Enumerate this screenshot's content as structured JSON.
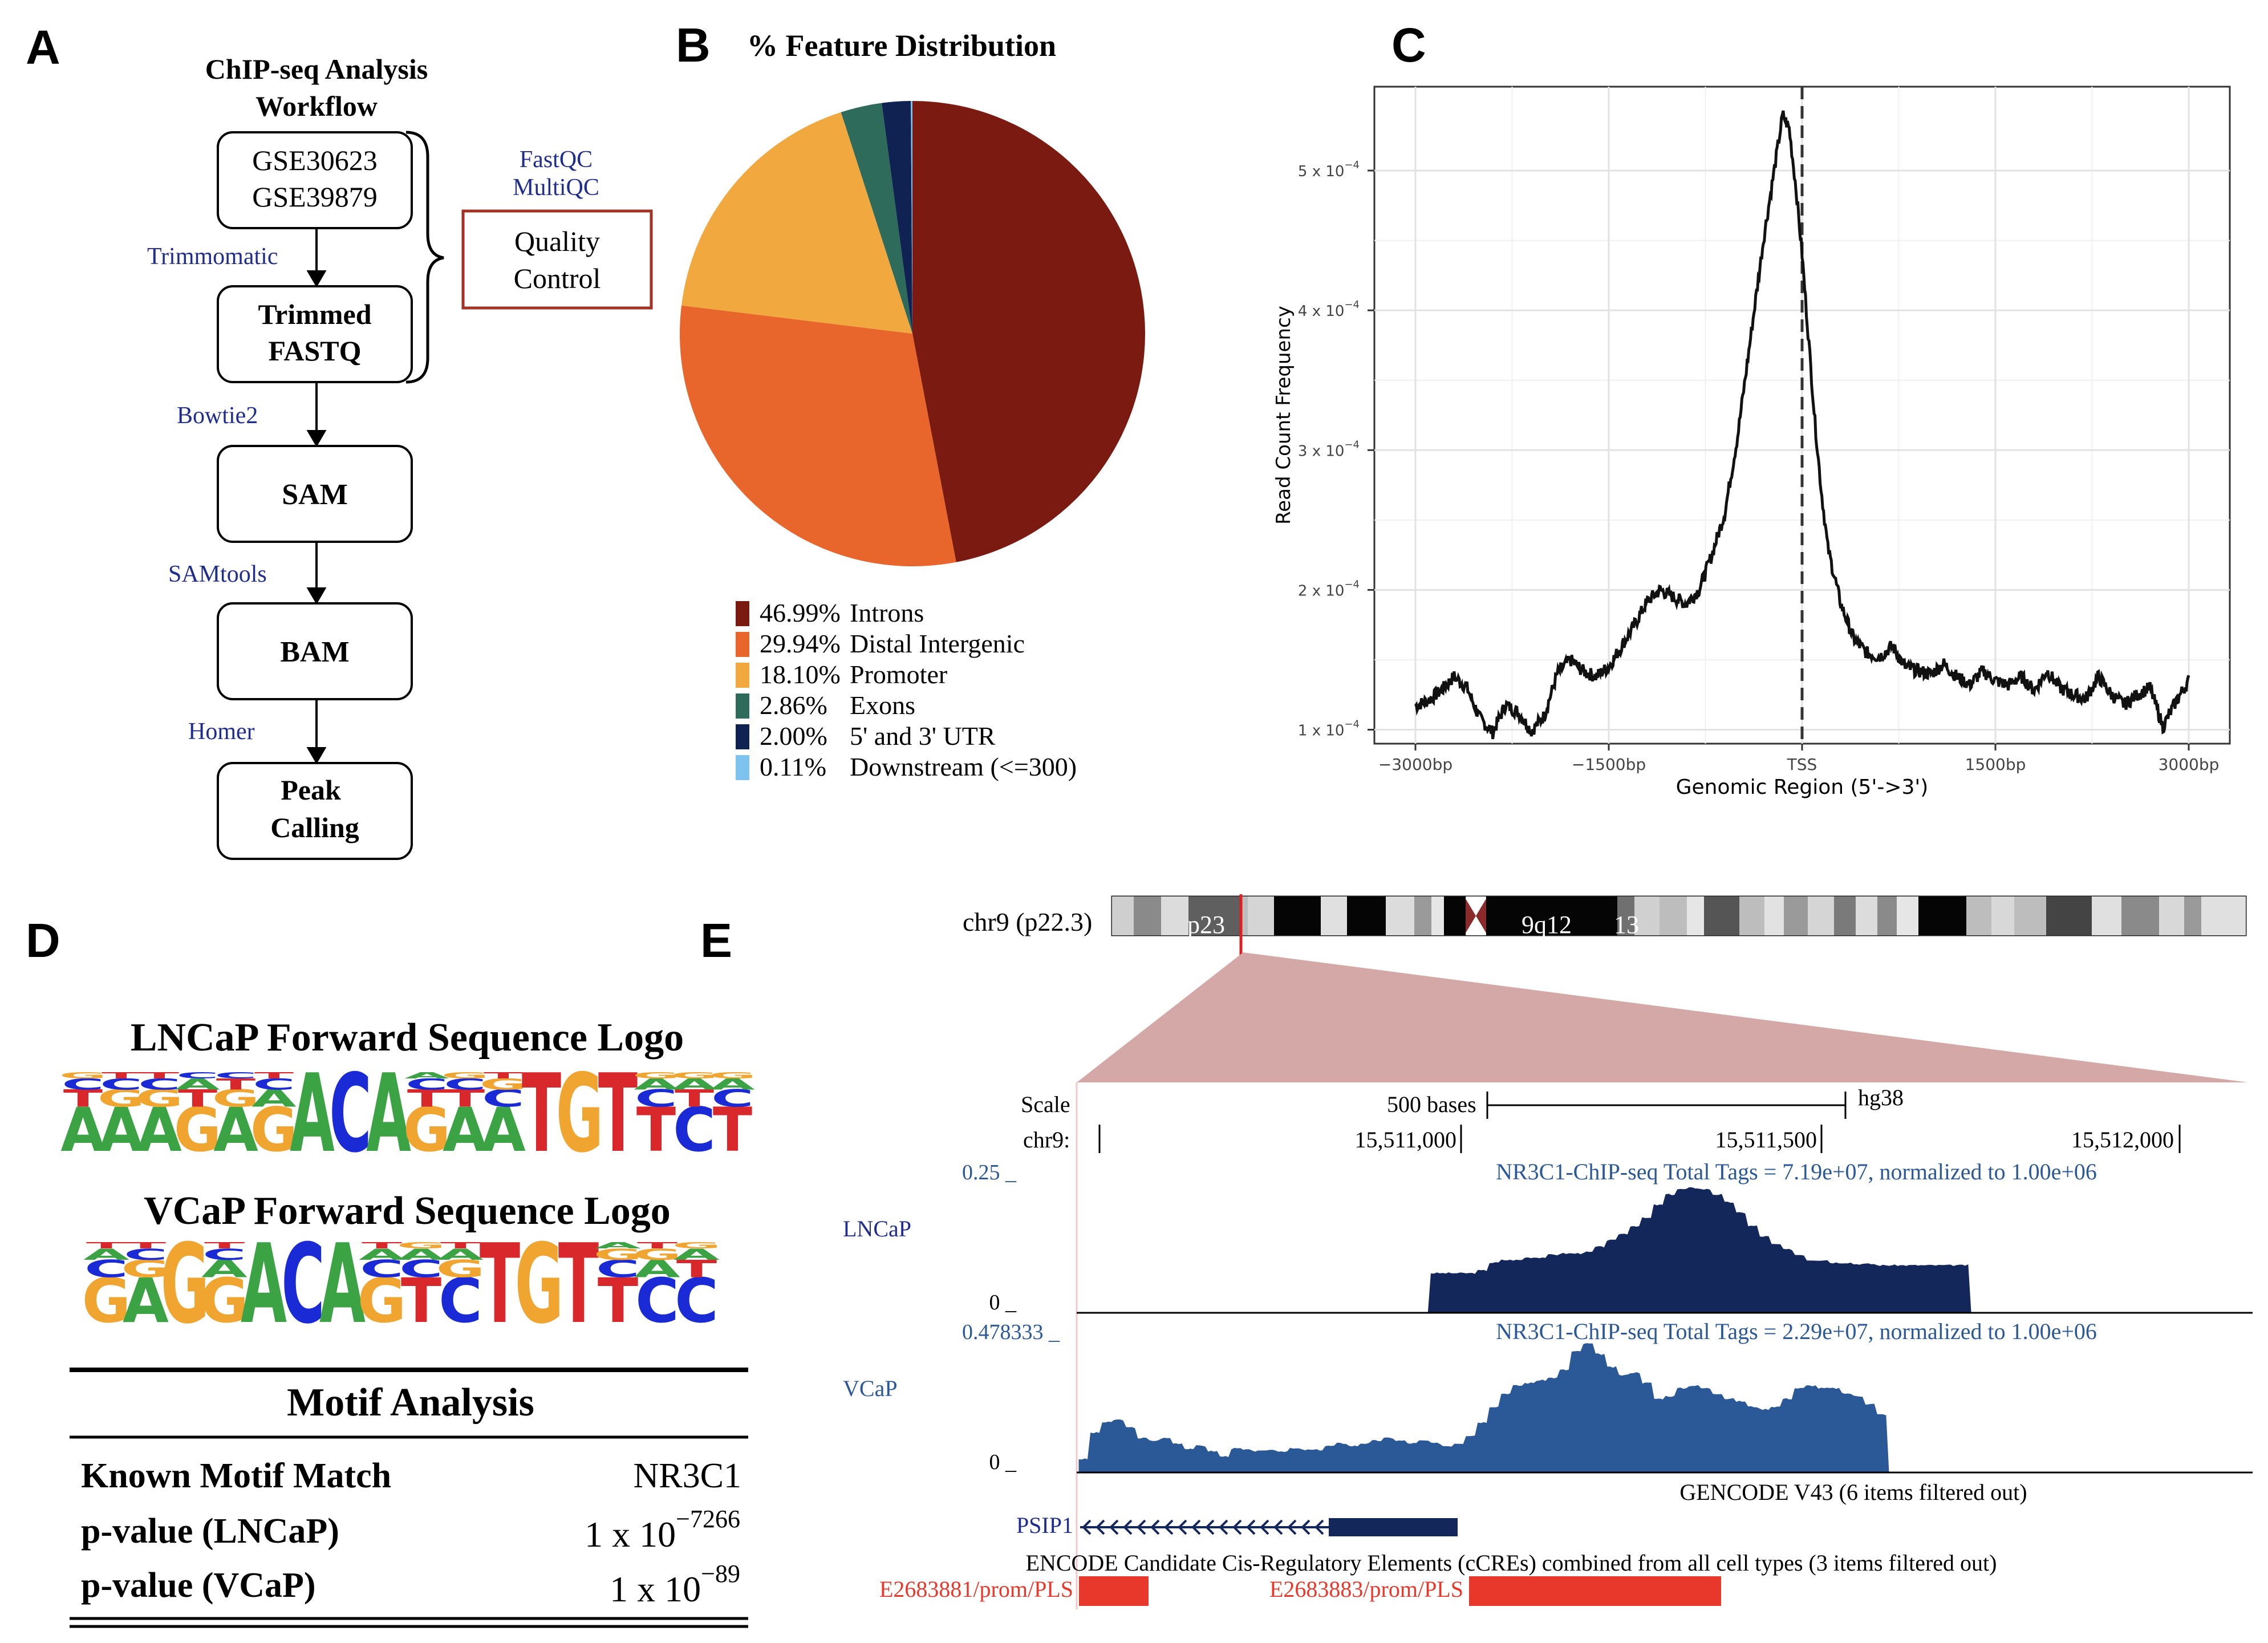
{
  "panels": {
    "a": "A",
    "b": "B",
    "c": "C",
    "d": "D",
    "e": "E"
  },
  "workflow": {
    "title_line1": "ChIP-seq Analysis",
    "title_line2": "Workflow",
    "nodes": [
      {
        "line1": "GSE30623",
        "line2": "GSE39879"
      },
      {
        "line1": "Trimmed",
        "line2": "FASTQ"
      },
      {
        "line1": "SAM",
        "line2": ""
      },
      {
        "line1": "BAM",
        "line2": ""
      },
      {
        "line1": "Peak",
        "line2": "Calling"
      }
    ],
    "tools": [
      "Trimmomatic",
      "Bowtie2",
      "SAMtools",
      "Homer"
    ],
    "qc_tools_line1": "FastQC",
    "qc_tools_line2": "MultiQC",
    "qc_box_line1": "Quality",
    "qc_box_line2": "Control"
  },
  "chart_data": [
    {
      "type": "pie",
      "title": "% Feature Distribution",
      "slices": [
        {
          "pct": "46.99%",
          "label": "Introns",
          "value": 46.99,
          "color": "#7b1a10"
        },
        {
          "pct": "29.94%",
          "label": "Distal Intergenic",
          "value": 29.94,
          "color": "#e8652b"
        },
        {
          "pct": "18.10%",
          "label": "Promoter",
          "value": 18.1,
          "color": "#f1a83f"
        },
        {
          "pct": "2.86%",
          "label": "Exons",
          "value": 2.86,
          "color": "#2e6b5a"
        },
        {
          "pct": "2.00%",
          "label": "5' and 3' UTR",
          "value": 2.0,
          "color": "#0f2251"
        },
        {
          "pct": "0.11%",
          "label": "Downstream (<=300)",
          "value": 0.11,
          "color": "#7ec3ef"
        }
      ]
    },
    {
      "type": "line",
      "xlabel": "Genomic Region (5'->3')",
      "ylabel": "Read Count Frequency",
      "xlim": [
        -3000,
        3000
      ],
      "ylim": [
        9e-05,
        0.00056
      ],
      "x_ticks": [
        {
          "value": -3000,
          "label": "−3000bp"
        },
        {
          "value": -1500,
          "label": "−1500bp"
        },
        {
          "value": 0,
          "label": "TSS"
        },
        {
          "value": 1500,
          "label": "1500bp"
        },
        {
          "value": 3000,
          "label": "3000bp"
        }
      ],
      "y_ticks": [
        {
          "value": 0.0001,
          "mant": "1 x 10",
          "exp": "−4"
        },
        {
          "value": 0.0002,
          "mant": "2 x 10",
          "exp": "−4"
        },
        {
          "value": 0.0003,
          "mant": "3 x 10",
          "exp": "−4"
        },
        {
          "value": 0.0004,
          "mant": "4 x 10",
          "exp": "−4"
        },
        {
          "value": 0.0005,
          "mant": "5 x 10",
          "exp": "−4"
        }
      ],
      "vline_x": 0,
      "series": [
        {
          "name": "profile",
          "x": [
            -3000,
            -2900,
            -2800,
            -2700,
            -2600,
            -2500,
            -2400,
            -2300,
            -2200,
            -2100,
            -2000,
            -1900,
            -1800,
            -1700,
            -1600,
            -1500,
            -1400,
            -1300,
            -1200,
            -1100,
            -1000,
            -900,
            -800,
            -700,
            -600,
            -500,
            -400,
            -300,
            -200,
            -150,
            -100,
            -50,
            0,
            50,
            100,
            150,
            200,
            300,
            400,
            500,
            600,
            700,
            800,
            900,
            1000,
            1100,
            1200,
            1300,
            1400,
            1500,
            1600,
            1700,
            1800,
            1900,
            2000,
            2100,
            2200,
            2300,
            2400,
            2500,
            2600,
            2700,
            2800,
            2900,
            3000
          ],
          "y": [
            0.000117,
            0.000121,
            0.000128,
            0.000138,
            0.00013,
            0.000108,
            9.8e-05,
            0.000118,
            0.000112,
            9.9e-05,
            0.00011,
            0.00014,
            0.00015,
            0.000142,
            0.000138,
            0.000145,
            0.00016,
            0.000175,
            0.000192,
            0.0002,
            0.000195,
            0.00019,
            0.0002,
            0.000225,
            0.000255,
            0.00031,
            0.00038,
            0.00045,
            0.00051,
            0.00054,
            0.00053,
            0.00049,
            0.00044,
            0.00038,
            0.00032,
            0.00027,
            0.00023,
            0.00019,
            0.000165,
            0.000155,
            0.000152,
            0.00016,
            0.000145,
            0.000142,
            0.00014,
            0.000147,
            0.000138,
            0.000132,
            0.000142,
            0.000135,
            0.000132,
            0.000138,
            0.000128,
            0.000142,
            0.00013,
            0.000125,
            0.000122,
            0.000138,
            0.000125,
            0.000118,
            0.000125,
            0.00013,
            0.000102,
            0.00012,
            0.000135
          ]
        }
      ]
    }
  ],
  "logos": {
    "lncap_title": "LNCaP Forward Sequence Logo",
    "vcap_title": "VCaP Forward Sequence Logo",
    "colors": {
      "A": "#3ca345",
      "C": "#1a2bd6",
      "G": "#f0a530",
      "T": "#d8282b"
    },
    "lncap": [
      [
        "A",
        "T",
        "C",
        "G"
      ],
      [
        "A",
        "G",
        "C",
        "T"
      ],
      [
        "A",
        "G",
        "C",
        "T"
      ],
      [
        "G",
        "T",
        "A",
        "C"
      ],
      [
        "A",
        "G",
        "T",
        "C"
      ],
      [
        "G",
        "A",
        "C",
        "T"
      ],
      [
        "A"
      ],
      [
        "C"
      ],
      [
        "A"
      ],
      [
        "G",
        "T",
        "C",
        "A"
      ],
      [
        "A",
        "T",
        "C",
        "G"
      ],
      [
        "A",
        "C",
        "G",
        "T"
      ],
      [
        "T"
      ],
      [
        "G"
      ],
      [
        "T"
      ],
      [
        "T",
        "C",
        "A",
        "G"
      ],
      [
        "C",
        "T",
        "A",
        "G"
      ],
      [
        "T",
        "C",
        "A",
        "G"
      ]
    ],
    "vcap": [
      [
        "G",
        "C",
        "A",
        "T"
      ],
      [
        "A",
        "G",
        "C",
        "T"
      ],
      [
        "G"
      ],
      [
        "G",
        "A",
        "C",
        "T"
      ],
      [
        "A"
      ],
      [
        "C"
      ],
      [
        "A"
      ],
      [
        "G",
        "C",
        "A",
        "T"
      ],
      [
        "T",
        "C",
        "A",
        "G"
      ],
      [
        "C",
        "G",
        "A",
        "T"
      ],
      [
        "T"
      ],
      [
        "G"
      ],
      [
        "T"
      ],
      [
        "T",
        "C",
        "G",
        "A"
      ],
      [
        "C",
        "A",
        "G",
        "T"
      ],
      [
        "C",
        "T",
        "A",
        "G"
      ]
    ]
  },
  "motif": {
    "title": "Motif Analysis",
    "rows": [
      {
        "label": "Known Motif Match",
        "value": "NR3C1",
        "exp": ""
      },
      {
        "label": "p-value (LNCaP)",
        "value": "1 x 10",
        "exp": "−7266"
      },
      {
        "label": "p-value (VCaP)",
        "value": "1 x 10",
        "exp": "−89"
      }
    ]
  },
  "browser": {
    "chrom_label": "chr9 (p22.3)",
    "band_p23": "p23",
    "band_9q12": "9q12",
    "band_13": "13",
    "scale_label": "Scale",
    "chr_label": "chr9:",
    "scale_bar": "500 bases",
    "assembly": "hg38",
    "coords": [
      "15,511,000",
      "15,511,500",
      "15,512,000"
    ],
    "tracks": [
      {
        "name": "LNCaP",
        "max": "0.25 _",
        "min": "0 _",
        "caption": "NR3C1-ChIP-seq Total Tags = 7.19e+07, normalized to 1.00e+06",
        "color": "#14275a",
        "profile": [
          0,
          0,
          0,
          0,
          0,
          0,
          0,
          0,
          0,
          0,
          0,
          0,
          0,
          0,
          0,
          0,
          0,
          0,
          0,
          0,
          0,
          0,
          0,
          0,
          0,
          0,
          0,
          0,
          0,
          0,
          0.3,
          0.3,
          0.3,
          0.3,
          0.32,
          0.38,
          0.4,
          0.4,
          0.42,
          0.42,
          0.44,
          0.45,
          0.45,
          0.46,
          0.5,
          0.55,
          0.6,
          0.66,
          0.72,
          0.82,
          0.9,
          0.94,
          0.95,
          0.94,
          0.9,
          0.84,
          0.76,
          0.66,
          0.58,
          0.52,
          0.48,
          0.44,
          0.4,
          0.4,
          0.38,
          0.38,
          0.37,
          0.37,
          0.36,
          0.36,
          0.36,
          0.36,
          0.36,
          0.36,
          0.36,
          0.36,
          0,
          0,
          0,
          0,
          0,
          0,
          0,
          0,
          0,
          0,
          0,
          0,
          0,
          0,
          0,
          0,
          0,
          0,
          0,
          0,
          0,
          0,
          0,
          0
        ]
      },
      {
        "name": "VCaP",
        "max": "0.478333 _",
        "min": "0 _",
        "caption": "NR3C1-ChIP-seq Total Tags = 2.29e+07, normalized to 1.00e+06",
        "color": "#2b5896",
        "profile": [
          0.1,
          0.3,
          0.38,
          0.4,
          0.34,
          0.26,
          0.24,
          0.26,
          0.22,
          0.18,
          0.2,
          0.16,
          0.12,
          0.18,
          0.17,
          0.16,
          0.17,
          0.16,
          0.18,
          0.17,
          0.17,
          0.2,
          0.22,
          0.2,
          0.22,
          0.24,
          0.26,
          0.24,
          0.22,
          0.24,
          0.22,
          0.2,
          0.22,
          0.28,
          0.38,
          0.5,
          0.6,
          0.66,
          0.68,
          0.7,
          0.72,
          0.78,
          0.92,
          0.98,
          0.9,
          0.8,
          0.74,
          0.76,
          0.68,
          0.56,
          0.58,
          0.64,
          0.66,
          0.64,
          0.6,
          0.56,
          0.54,
          0.5,
          0.48,
          0.5,
          0.56,
          0.64,
          0.66,
          0.64,
          0.64,
          0.6,
          0.58,
          0.52,
          0.44,
          0,
          0,
          0,
          0,
          0,
          0,
          0,
          0,
          0,
          0,
          0,
          0,
          0,
          0,
          0,
          0,
          0,
          0,
          0,
          0,
          0,
          0,
          0,
          0,
          0,
          0,
          0,
          0,
          0,
          0,
          0
        ]
      }
    ],
    "gencode_label": "GENCODE V43 (6 items filtered out)",
    "gene_name": "PSIP1",
    "encode_label": "ENCODE Candidate Cis-Regulatory Elements (cCREs) combined from all cell types (3 items filtered out)",
    "ccre1": "E2683881/prom/PLS",
    "ccre2": "E2683883/prom/PLS"
  }
}
